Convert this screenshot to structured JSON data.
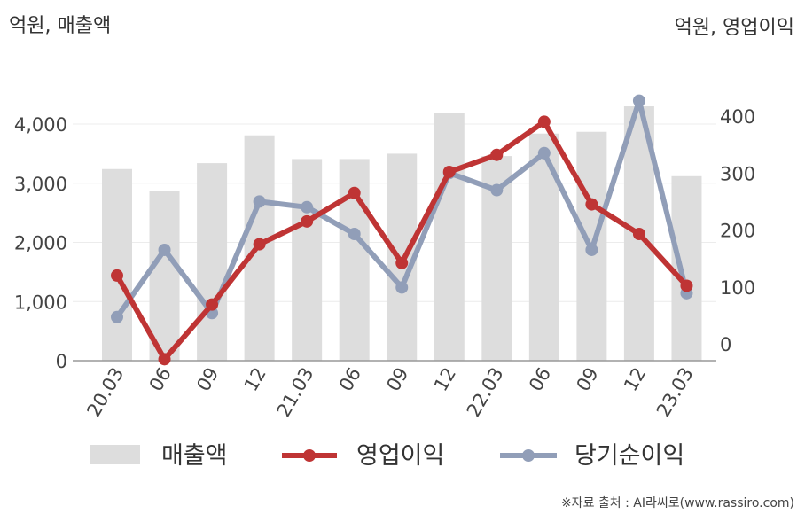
{
  "chart_data": {
    "type": "bar+line",
    "left_unit_label": "억원, 매출액",
    "right_unit_label": "억원, 영업이익",
    "categories": [
      "20.03",
      "06",
      "09",
      "12",
      "21.03",
      "06",
      "09",
      "12",
      "22.03",
      "06",
      "09",
      "12",
      "23.03"
    ],
    "left_axis": {
      "ylim": [
        0,
        4600
      ],
      "ticks": [
        "0",
        "1,000",
        "2,000",
        "3,000",
        "4,000"
      ],
      "tick_values": [
        0,
        1000,
        2000,
        3000,
        4000
      ]
    },
    "right_axis": {
      "ylim": [
        -30,
        450
      ],
      "ticks": [
        "0",
        "100",
        "200",
        "300",
        "400"
      ],
      "tick_values": [
        0,
        100,
        200,
        300,
        400
      ]
    },
    "series": [
      {
        "name": "매출액",
        "kind": "bar",
        "axis": "left",
        "color": "#dddddd",
        "values": [
          3240,
          2870,
          3340,
          3810,
          3410,
          3410,
          3500,
          4190,
          3460,
          3840,
          3870,
          4300,
          3120
        ]
      },
      {
        "name": "영업이익",
        "kind": "line",
        "axis": "right",
        "color": "#bf3434",
        "values": [
          120,
          -27,
          69,
          175,
          215,
          265,
          142,
          302,
          332,
          390,
          245,
          193,
          102
        ]
      },
      {
        "name": "당기순이익",
        "kind": "line",
        "axis": "right",
        "color": "#919eb8",
        "values": [
          47,
          165,
          54,
          250,
          240,
          193,
          99,
          300,
          270,
          335,
          165,
          427,
          89
        ]
      }
    ],
    "grid": true,
    "legend_position": "bottom",
    "source": "※자료 출처 : AI라씨로(www.rassiro.com)"
  }
}
